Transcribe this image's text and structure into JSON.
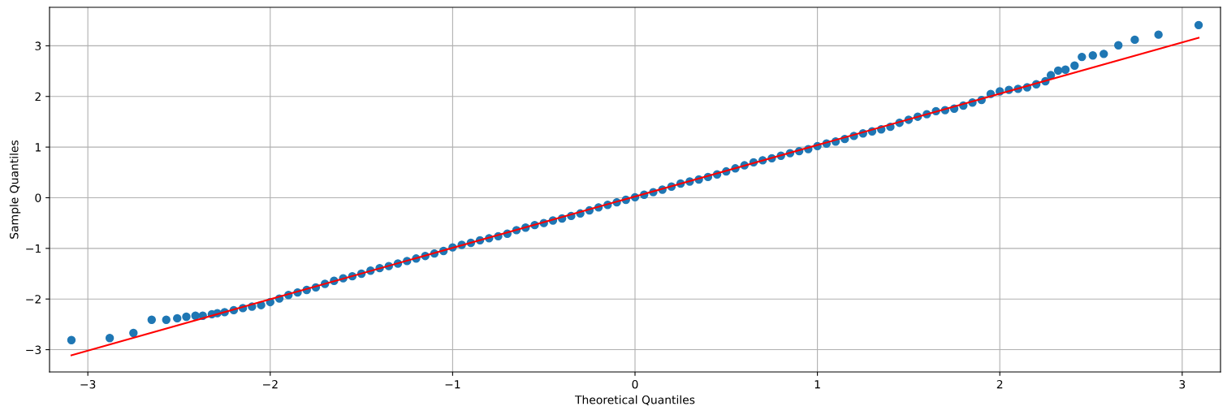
{
  "chart_data": {
    "type": "scatter",
    "xlabel": "Theoretical Quantiles",
    "ylabel": "Sample Quantiles",
    "xlim": [
      -3.21,
      3.21
    ],
    "ylim": [
      -3.44,
      3.76
    ],
    "xticks": [
      -3,
      -2,
      -1,
      0,
      1,
      2,
      3
    ],
    "yticks": [
      -3,
      -2,
      -1,
      0,
      1,
      2,
      3
    ],
    "grid": true,
    "marker": "circle",
    "series": [
      {
        "color": "#1f77b4",
        "x": [
          -3.09,
          -2.88,
          -2.75,
          -2.65,
          -2.57,
          -2.51,
          -2.46,
          -2.41,
          -2.37,
          -2.32,
          -2.29,
          -2.25,
          -2.2,
          -2.15,
          -2.1,
          -2.05,
          -2.0,
          -1.95,
          -1.9,
          -1.85,
          -1.8,
          -1.75,
          -1.7,
          -1.65,
          -1.6,
          -1.55,
          -1.5,
          -1.45,
          -1.4,
          -1.35,
          -1.3,
          -1.25,
          -1.2,
          -1.15,
          -1.1,
          -1.05,
          -1.0,
          -0.95,
          -0.9,
          -0.85,
          -0.8,
          -0.75,
          -0.7,
          -0.65,
          -0.6,
          -0.55,
          -0.5,
          -0.45,
          -0.4,
          -0.35,
          -0.3,
          -0.25,
          -0.2,
          -0.15,
          -0.1,
          -0.05,
          0,
          0.05,
          0.1,
          0.15,
          0.2,
          0.25,
          0.3,
          0.35,
          0.4,
          0.45,
          0.5,
          0.55,
          0.6,
          0.65,
          0.7,
          0.75,
          0.8,
          0.85,
          0.9,
          0.95,
          1.0,
          1.05,
          1.1,
          1.15,
          1.2,
          1.25,
          1.3,
          1.35,
          1.4,
          1.45,
          1.5,
          1.55,
          1.6,
          1.65,
          1.7,
          1.75,
          1.8,
          1.85,
          1.9,
          1.95,
          2.0,
          2.05,
          2.1,
          2.15,
          2.2,
          2.25,
          2.28,
          2.32,
          2.36,
          2.41,
          2.45,
          2.51,
          2.57,
          2.65,
          2.74,
          2.87,
          3.09
        ],
        "values": [
          -2.81,
          -2.77,
          -2.67,
          -2.41,
          -2.41,
          -2.38,
          -2.35,
          -2.33,
          -2.33,
          -2.3,
          -2.28,
          -2.26,
          -2.22,
          -2.18,
          -2.15,
          -2.12,
          -2.06,
          -1.99,
          -1.92,
          -1.87,
          -1.82,
          -1.77,
          -1.7,
          -1.64,
          -1.59,
          -1.55,
          -1.5,
          -1.44,
          -1.39,
          -1.35,
          -1.3,
          -1.25,
          -1.2,
          -1.15,
          -1.1,
          -1.05,
          -0.98,
          -0.93,
          -0.89,
          -0.84,
          -0.8,
          -0.76,
          -0.71,
          -0.64,
          -0.59,
          -0.54,
          -0.5,
          -0.45,
          -0.41,
          -0.36,
          -0.31,
          -0.25,
          -0.19,
          -0.14,
          -0.09,
          -0.04,
          0.01,
          0.06,
          0.11,
          0.16,
          0.22,
          0.28,
          0.32,
          0.36,
          0.41,
          0.46,
          0.52,
          0.58,
          0.64,
          0.7,
          0.74,
          0.78,
          0.83,
          0.88,
          0.92,
          0.96,
          1.02,
          1.07,
          1.11,
          1.16,
          1.22,
          1.27,
          1.31,
          1.35,
          1.4,
          1.48,
          1.54,
          1.6,
          1.65,
          1.71,
          1.73,
          1.76,
          1.82,
          1.88,
          1.93,
          2.05,
          2.1,
          2.13,
          2.15,
          2.18,
          2.24,
          2.3,
          2.42,
          2.51,
          2.53,
          2.61,
          2.78,
          2.81,
          2.84,
          3.01,
          3.12,
          3.22,
          3.41
        ]
      },
      {
        "type": "line",
        "color": "#ff0000",
        "marker": "none",
        "x": [
          -3.09,
          3.09
        ],
        "values": [
          -3.11,
          3.16
        ]
      }
    ]
  }
}
